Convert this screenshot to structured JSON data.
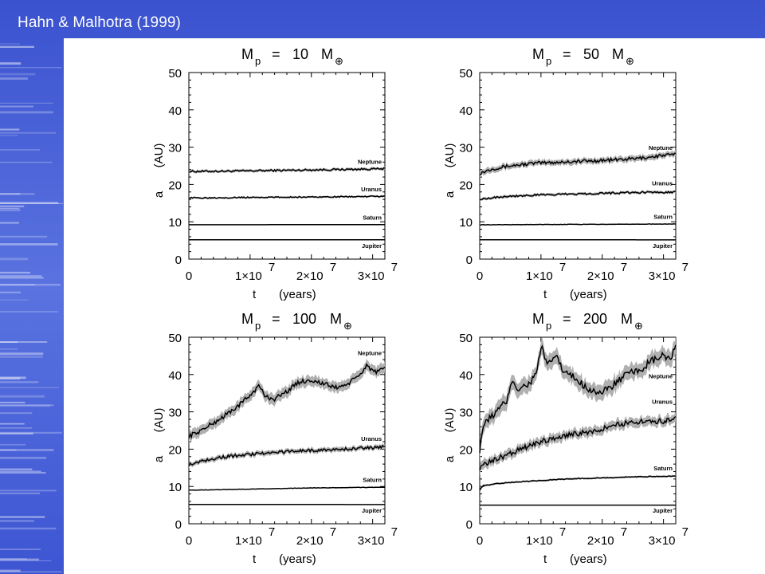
{
  "slide": {
    "title": "Hahn & Malhotra (1999)",
    "theme_colors": {
      "background": "#4a63d6",
      "panel": "#ffffff",
      "line": "#000000",
      "band": "#b0b0b0"
    }
  },
  "chart_data": [
    {
      "type": "line",
      "title_parts": {
        "M": "M",
        "sub": "p",
        "eq": "=",
        "value": "10",
        "M2": "M",
        "earth": "⊕"
      },
      "xlabel_t": "t",
      "xlabel_unit": "(years)",
      "ylabel_a": "a",
      "ylabel_unit": "(AU)",
      "xlim": [
        0,
        32000000
      ],
      "ylim": [
        0,
        50
      ],
      "yticks": [
        "0",
        "10",
        "20",
        "30",
        "40",
        "50"
      ],
      "xticks": [
        {
          "value": 0,
          "mant": "0",
          "exp": ""
        },
        {
          "value": 10000000,
          "mant": "1×10",
          "exp": "7"
        },
        {
          "value": 20000000,
          "mant": "2×10",
          "exp": "7"
        },
        {
          "value": 30000000,
          "mant": "3×10",
          "exp": "7"
        }
      ],
      "series": [
        {
          "name": "Neptune",
          "x": [
            0,
            8000000,
            16000000,
            24000000,
            32000000
          ],
          "y": [
            23.5,
            23.6,
            23.8,
            24.0,
            24.2
          ],
          "noise": 0.25,
          "band": 0.3,
          "label_y": 25.5
        },
        {
          "name": "Uranus",
          "x": [
            0,
            8000000,
            16000000,
            24000000,
            32000000
          ],
          "y": [
            16.4,
            16.5,
            16.6,
            16.7,
            16.8
          ],
          "noise": 0.15,
          "band": 0.2,
          "label_y": 18.2
        },
        {
          "name": "Saturn",
          "x": [
            0,
            32000000
          ],
          "y": [
            9.2,
            9.25
          ],
          "noise": 0,
          "band": 0,
          "label_y": 10.6
        },
        {
          "name": "Jupiter",
          "x": [
            0,
            32000000
          ],
          "y": [
            5.2,
            5.2
          ],
          "noise": 0,
          "band": 0,
          "label_y": 3.0
        }
      ]
    },
    {
      "type": "line",
      "title_parts": {
        "M": "M",
        "sub": "p",
        "eq": "=",
        "value": "50",
        "M2": "M",
        "earth": "⊕"
      },
      "xlabel_t": "t",
      "xlabel_unit": "(years)",
      "ylabel_a": "a",
      "ylabel_unit": "(AU)",
      "xlim": [
        0,
        32000000
      ],
      "ylim": [
        0,
        50
      ],
      "yticks": [
        "0",
        "10",
        "20",
        "30",
        "40",
        "50"
      ],
      "xticks": [
        {
          "value": 0,
          "mant": "0",
          "exp": ""
        },
        {
          "value": 10000000,
          "mant": "1×10",
          "exp": "7"
        },
        {
          "value": 20000000,
          "mant": "2×10",
          "exp": "7"
        },
        {
          "value": 30000000,
          "mant": "3×10",
          "exp": "7"
        }
      ],
      "series": [
        {
          "name": "Neptune",
          "x": [
            0,
            2000000,
            5000000,
            9000000,
            13000000,
            18000000,
            22000000,
            26000000,
            30000000,
            32000000
          ],
          "y": [
            23.0,
            24.2,
            25.0,
            25.7,
            26.0,
            26.3,
            26.6,
            27.0,
            27.8,
            28.0
          ],
          "noise": 0.45,
          "band": 0.6,
          "label_y": 29.3
        },
        {
          "name": "Uranus",
          "x": [
            0,
            4000000,
            10000000,
            16000000,
            24000000,
            32000000
          ],
          "y": [
            16.1,
            16.8,
            17.2,
            17.5,
            17.8,
            18.0
          ],
          "noise": 0.25,
          "band": 0.3,
          "label_y": 19.8
        },
        {
          "name": "Saturn",
          "x": [
            0,
            32000000
          ],
          "y": [
            9.2,
            9.4
          ],
          "noise": 0.05,
          "band": 0,
          "label_y": 10.8
        },
        {
          "name": "Jupiter",
          "x": [
            0,
            32000000
          ],
          "y": [
            5.2,
            5.15
          ],
          "noise": 0,
          "band": 0,
          "label_y": 3.0
        }
      ]
    },
    {
      "type": "line",
      "title_parts": {
        "M": "M",
        "sub": "p",
        "eq": "=",
        "value": "100",
        "M2": "M",
        "earth": "⊕"
      },
      "xlabel_t": "t",
      "xlabel_unit": "(years)",
      "ylabel_a": "a",
      "ylabel_unit": "(AU)",
      "xlim": [
        0,
        32000000
      ],
      "ylim": [
        0,
        50
      ],
      "yticks": [
        "0",
        "10",
        "20",
        "30",
        "40",
        "50"
      ],
      "xticks": [
        {
          "value": 0,
          "mant": "0",
          "exp": ""
        },
        {
          "value": 10000000,
          "mant": "1×10",
          "exp": "7"
        },
        {
          "value": 20000000,
          "mant": "2×10",
          "exp": "7"
        },
        {
          "value": 30000000,
          "mant": "3×10",
          "exp": "7"
        }
      ],
      "series": [
        {
          "name": "Neptune",
          "x": [
            0,
            2000000,
            5000000,
            8000000,
            10000000,
            11500000,
            12500000,
            14000000,
            16000000,
            18000000,
            20000000,
            22000000,
            24000000,
            26000000,
            28000000,
            29000000,
            30500000,
            32000000
          ],
          "y": [
            23.5,
            25.0,
            28.0,
            31.5,
            34.5,
            37.0,
            34.0,
            33.5,
            35.5,
            38.0,
            38.5,
            37.5,
            36.5,
            37.5,
            40.0,
            42.5,
            40.5,
            41.5
          ],
          "noise": 0.6,
          "band": 1.1,
          "label_y": 45.2
        },
        {
          "name": "Uranus",
          "x": [
            0,
            2000000,
            5000000,
            9000000,
            13000000,
            17000000,
            21000000,
            25000000,
            29000000,
            32000000
          ],
          "y": [
            15.8,
            16.8,
            17.8,
            18.5,
            19.0,
            19.5,
            19.7,
            20.0,
            20.3,
            20.6
          ],
          "noise": 0.4,
          "band": 0.5,
          "label_y": 22.2
        },
        {
          "name": "Saturn",
          "x": [
            0,
            10000000,
            20000000,
            32000000
          ],
          "y": [
            9.0,
            9.3,
            9.6,
            9.8
          ],
          "noise": 0.05,
          "band": 0,
          "label_y": 11.2
        },
        {
          "name": "Jupiter",
          "x": [
            0,
            32000000
          ],
          "y": [
            5.2,
            5.15
          ],
          "noise": 0,
          "band": 0,
          "label_y": 3.0
        }
      ]
    },
    {
      "type": "line",
      "title_parts": {
        "M": "M",
        "sub": "p",
        "eq": "=",
        "value": "200",
        "M2": "M",
        "earth": "⊕"
      },
      "xlabel_t": "t",
      "xlabel_unit": "(years)",
      "ylabel_a": "a",
      "ylabel_unit": "(AU)",
      "xlim": [
        0,
        32000000
      ],
      "ylim": [
        0,
        50
      ],
      "yticks": [
        "0",
        "10",
        "20",
        "30",
        "40",
        "50"
      ],
      "xticks": [
        {
          "value": 0,
          "mant": "0",
          "exp": ""
        },
        {
          "value": 10000000,
          "mant": "1×10",
          "exp": "7"
        },
        {
          "value": 20000000,
          "mant": "2×10",
          "exp": "7"
        },
        {
          "value": 30000000,
          "mant": "3×10",
          "exp": "7"
        }
      ],
      "series": [
        {
          "name": "Neptune",
          "x": [
            0,
            500000,
            1500000,
            3000000,
            4500000,
            5300000,
            6200000,
            8000000,
            9000000,
            10200000,
            11000000,
            12500000,
            13500000,
            15500000,
            18000000,
            20000000,
            22000000,
            24000000,
            26000000,
            28000000,
            30000000,
            31000000,
            32000000
          ],
          "y": [
            20.0,
            26.0,
            28.0,
            30.5,
            33.0,
            39.0,
            36.0,
            37.5,
            39.5,
            47.5,
            42.0,
            45.5,
            41.0,
            39.0,
            36.0,
            35.0,
            37.5,
            40.0,
            41.0,
            43.5,
            45.0,
            44.0,
            47.0
          ],
          "noise": 1.0,
          "band": 1.6,
          "label_y": 39.0
        },
        {
          "name": "Uranus",
          "x": [
            0,
            1000000,
            3000000,
            6000000,
            9000000,
            12000000,
            15000000,
            18000000,
            21000000,
            24000000,
            27000000,
            30000000,
            32000000
          ],
          "y": [
            15.0,
            16.0,
            17.5,
            19.5,
            21.5,
            23.0,
            24.0,
            24.5,
            26.0,
            27.0,
            27.5,
            27.5,
            28.5
          ],
          "noise": 0.7,
          "band": 1.0,
          "label_y": 32.2
        },
        {
          "name": "Saturn",
          "x": [
            0,
            500000,
            3000000,
            8000000,
            14000000,
            20000000,
            26000000,
            32000000
          ],
          "y": [
            9.0,
            10.2,
            10.8,
            11.4,
            12.0,
            12.3,
            12.6,
            12.8
          ],
          "noise": 0.1,
          "band": 0.2,
          "label_y": 14.3
        },
        {
          "name": "Jupiter",
          "x": [
            0,
            32000000
          ],
          "y": [
            5.0,
            5.0
          ],
          "noise": 0,
          "band": 0,
          "label_y": 3.0
        }
      ]
    }
  ]
}
